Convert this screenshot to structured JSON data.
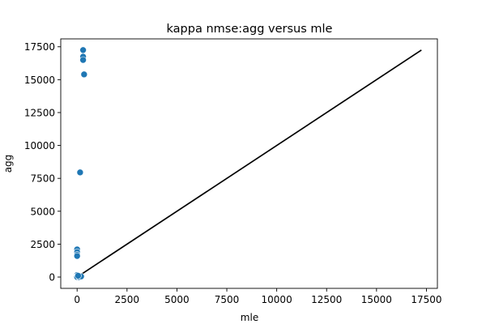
{
  "chart_data": {
    "type": "scatter",
    "title": "kappa nmse:agg versus mle",
    "xlabel": "mle",
    "ylabel": "agg",
    "xlim": [
      -820,
      18050
    ],
    "ylim": [
      -860,
      18100
    ],
    "x_ticks": [
      0,
      2500,
      5000,
      7500,
      10000,
      12500,
      15000,
      17500
    ],
    "y_ticks": [
      0,
      2500,
      5000,
      7500,
      10000,
      12500,
      15000,
      17500
    ],
    "grid": false,
    "legend": "none",
    "marker_color": "#1f77b4",
    "line_color": "#000000",
    "points": [
      {
        "x": 300,
        "y": 17250
      },
      {
        "x": 300,
        "y": 16750
      },
      {
        "x": 300,
        "y": 16500
      },
      {
        "x": 350,
        "y": 15400
      },
      {
        "x": 150,
        "y": 7950
      },
      {
        "x": 0,
        "y": 2100
      },
      {
        "x": 0,
        "y": 1900
      },
      {
        "x": 0,
        "y": 1700
      },
      {
        "x": 0,
        "y": 1600
      },
      {
        "x": 0,
        "y": 150
      },
      {
        "x": 0,
        "y": 50
      },
      {
        "x": 0,
        "y": 0
      },
      {
        "x": 100,
        "y": 0
      },
      {
        "x": 200,
        "y": 50
      },
      {
        "x": 50,
        "y": 100
      }
    ],
    "identity_line": {
      "x": [
        0,
        17250
      ],
      "y": [
        0,
        17250
      ]
    }
  }
}
